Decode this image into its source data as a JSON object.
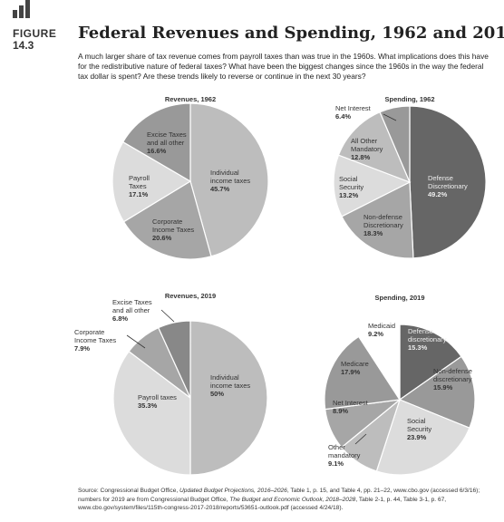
{
  "figure": {
    "word": "FIGURE",
    "number": "14.3"
  },
  "title": "Federal Revenues and Spending, 1962 and 2019",
  "caption": "A much larger share of tax revenue comes from payroll taxes than was true in the 1960s. What implications does this have for the redistributive nature of federal taxes? What have been the biggest changes since the 1960s in the way the federal tax dollar is spent? Are these trends likely to reverse or continue in the next 30 years?",
  "source": {
    "prefix": "Source: Congressional Budget Office, ",
    "title1": "Updated Budget Projections, 2016–2026",
    "mid": ", Table 1, p. 15, and Table 4, pp. 21–22, www.cbo.gov (accessed 6/3/16); numbers for 2019 are from Congressional Budget Office, ",
    "title2": "The Budget and Economic Outlook, 2018–2028",
    "suffix": ", Table 2-1, p. 44, Table 3-1, p. 67, www.cbo.gov/system/files/115th-congress-2017-2018/reports/53651-outlook.pdf (accessed 4/24/18)."
  },
  "chart_data": [
    {
      "type": "pie",
      "title": "Revenues, 1962",
      "slices": [
        {
          "label": [
            "Individual",
            "income taxes"
          ],
          "value_label": "45.7%",
          "value": 45.7,
          "color": "#bdbdbd"
        },
        {
          "label": [
            "Corporate",
            "Income Taxes"
          ],
          "value_label": "20.6%",
          "value": 20.6,
          "color": "#a6a6a6"
        },
        {
          "label": [
            "Payroll",
            "Taxes"
          ],
          "value_label": "17.1%",
          "value": 17.1,
          "color": "#dcdcdc"
        },
        {
          "label": [
            "Excise Taxes",
            "and all other"
          ],
          "value_label": "16.6%",
          "value": 16.6,
          "color": "#999999"
        }
      ]
    },
    {
      "type": "pie",
      "title": "Spending, 1962",
      "slices": [
        {
          "label": [
            "Defense",
            "Discretionary"
          ],
          "value_label": "49.2%",
          "value": 49.2,
          "color": "#666666"
        },
        {
          "label": [
            "Non-defense",
            "Discretionary"
          ],
          "value_label": "18.3%",
          "value": 18.3,
          "color": "#a6a6a6"
        },
        {
          "label": [
            "Social",
            "Security"
          ],
          "value_label": "13.2%",
          "value": 13.2,
          "color": "#dcdcdc"
        },
        {
          "label": [
            "All Other",
            "Mandatory"
          ],
          "value_label": "12.8%",
          "value": 12.8,
          "color": "#bdbdbd"
        },
        {
          "label": [
            "Net Interest"
          ],
          "value_label": "6.4%",
          "value": 6.4,
          "color": "#999999"
        }
      ]
    },
    {
      "type": "pie",
      "title": "Revenues, 2019",
      "slices": [
        {
          "label": [
            "Individual",
            "income taxes"
          ],
          "value_label": "50%",
          "value": 50,
          "color": "#bdbdbd"
        },
        {
          "label": [
            "Payroll taxes"
          ],
          "value_label": "35.3%",
          "value": 35.3,
          "color": "#dcdcdc"
        },
        {
          "label": [
            "Corporate",
            "Income Taxes"
          ],
          "value_label": "7.9%",
          "value": 7.9,
          "color": "#a6a6a6"
        },
        {
          "label": [
            "Excise Taxes",
            "and all other"
          ],
          "value_label": "6.8%",
          "value": 6.8,
          "color": "#888888"
        }
      ]
    },
    {
      "type": "pie",
      "title": "Spending, 2019",
      "slices": [
        {
          "label": [
            "Defense",
            "discretionary"
          ],
          "value_label": "15.3%",
          "value": 15.3,
          "color": "#666666"
        },
        {
          "label": [
            "Non-defense",
            "discretionary"
          ],
          "value_label": "15.9%",
          "value": 15.9,
          "color": "#999999"
        },
        {
          "label": [
            "Social",
            "Security"
          ],
          "value_label": "23.9%",
          "value": 23.9,
          "color": "#dcdcdc"
        },
        {
          "label": [
            "Other",
            "mandatory"
          ],
          "value_label": "9.1%",
          "value": 9.1,
          "color": "#bdbdbd"
        },
        {
          "label": [
            "Net Interest"
          ],
          "value_label": "8.9%",
          "value": 8.9,
          "color": "#a6a6a6"
        },
        {
          "label": [
            "Medicare"
          ],
          "value_label": "17.9%",
          "value": 17.9,
          "color": "#999999"
        },
        {
          "label": [
            "Medicaid"
          ],
          "value_label": "9.2%",
          "value": 9.2,
          "color": "#ffffff"
        }
      ]
    }
  ]
}
